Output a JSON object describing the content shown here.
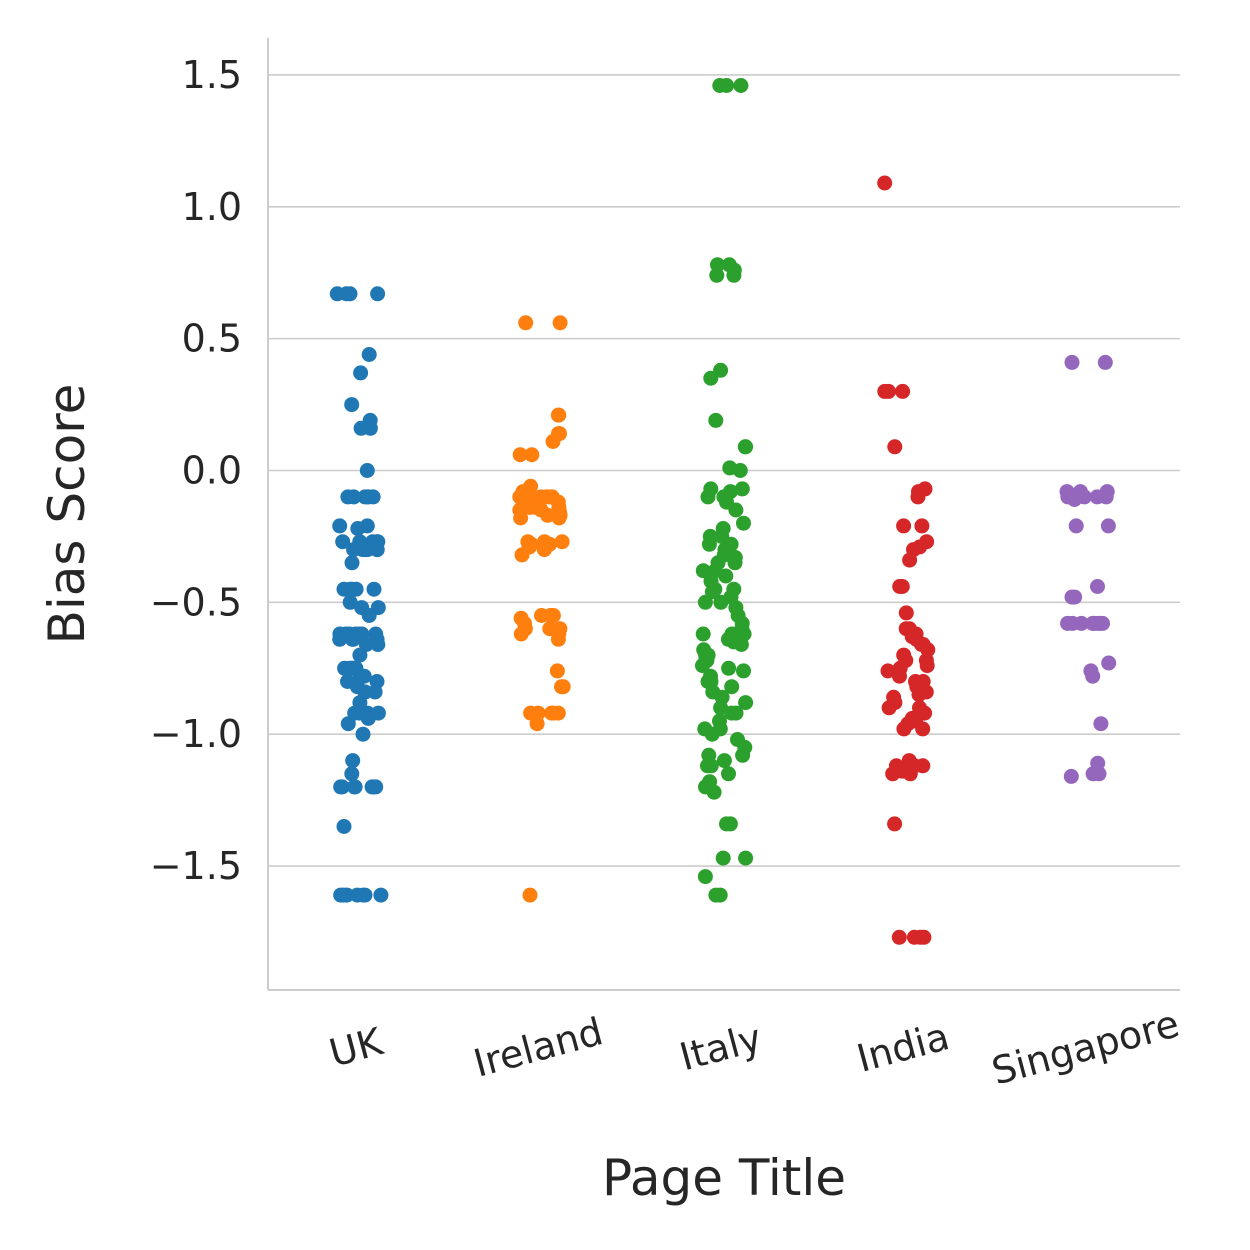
{
  "chart_data": {
    "type": "scatter",
    "subtype": "strip",
    "title": "",
    "xlabel": "Page Title",
    "ylabel": "Bias Score",
    "ylim": [
      -1.97,
      1.64
    ],
    "yticks": [
      1.5,
      1.0,
      0.5,
      0.0,
      -0.5,
      -1.0,
      -1.5
    ],
    "ytick_labels": [
      "1.5",
      "1.0",
      "0.5",
      "0.0",
      "−0.5",
      "−1.0",
      "−1.5"
    ],
    "grid": "horizontal",
    "categories": [
      "UK",
      "Ireland",
      "Italy",
      "India",
      "Singapore"
    ],
    "colors": [
      "#1f77b4",
      "#ff7f0e",
      "#2ca02c",
      "#d62728",
      "#9467bd"
    ],
    "series": [
      {
        "values": [
          0.67,
          0.67,
          0.67,
          0.67,
          0.44,
          0.37,
          0.25,
          0.19,
          0.16,
          0.16,
          0.0,
          -0.1,
          -0.1,
          -0.1,
          -0.1,
          -0.1,
          -0.1,
          -0.21,
          -0.21,
          -0.22,
          -0.27,
          -0.27,
          -0.27,
          -0.27,
          -0.27,
          -0.3,
          -0.3,
          -0.3,
          -0.3,
          -0.3,
          -0.3,
          -0.35,
          -0.45,
          -0.45,
          -0.45,
          -0.45,
          -0.45,
          -0.5,
          -0.52,
          -0.52,
          -0.55,
          -0.62,
          -0.62,
          -0.62,
          -0.62,
          -0.62,
          -0.62,
          -0.62,
          -0.64,
          -0.64,
          -0.64,
          -0.64,
          -0.66,
          -0.66,
          -0.7,
          -0.75,
          -0.75,
          -0.75,
          -0.75,
          -0.75,
          -0.75,
          -0.78,
          -0.78,
          -0.8,
          -0.8,
          -0.82,
          -0.84,
          -0.84,
          -0.84,
          -0.88,
          -0.92,
          -0.92,
          -0.92,
          -0.92,
          -0.94,
          -0.96,
          -1.0,
          -1.1,
          -1.15,
          -1.2,
          -1.2,
          -1.2,
          -1.2,
          -1.2,
          -1.2,
          -1.2,
          -1.35,
          -1.61,
          -1.61,
          -1.61,
          -1.61,
          -1.61,
          -1.61,
          -1.61
        ]
      },
      {
        "values": [
          0.56,
          0.56,
          0.21,
          0.21,
          0.14,
          0.14,
          0.11,
          0.06,
          0.06,
          -0.06,
          -0.08,
          -0.1,
          -0.1,
          -0.1,
          -0.1,
          -0.1,
          -0.1,
          -0.12,
          -0.12,
          -0.14,
          -0.14,
          -0.14,
          -0.14,
          -0.15,
          -0.15,
          -0.16,
          -0.17,
          -0.17,
          -0.18,
          -0.18,
          -0.27,
          -0.27,
          -0.27,
          -0.28,
          -0.28,
          -0.29,
          -0.29,
          -0.3,
          -0.32,
          -0.55,
          -0.55,
          -0.55,
          -0.55,
          -0.56,
          -0.58,
          -0.6,
          -0.6,
          -0.6,
          -0.62,
          -0.62,
          -0.64,
          -0.76,
          -0.82,
          -0.82,
          -0.92,
          -0.92,
          -0.92,
          -0.92,
          -0.92,
          -0.96,
          -1.61
        ]
      },
      {
        "values": [
          1.46,
          1.46,
          1.46,
          0.78,
          0.78,
          0.76,
          0.74,
          0.74,
          0.38,
          0.35,
          0.19,
          0.09,
          0.09,
          0.01,
          0.0,
          -0.07,
          -0.07,
          -0.08,
          -0.1,
          -0.1,
          -0.12,
          -0.15,
          -0.2,
          -0.22,
          -0.25,
          -0.25,
          -0.28,
          -0.28,
          -0.3,
          -0.3,
          -0.32,
          -0.33,
          -0.35,
          -0.35,
          -0.38,
          -0.38,
          -0.4,
          -0.42,
          -0.45,
          -0.45,
          -0.46,
          -0.48,
          -0.5,
          -0.5,
          -0.52,
          -0.55,
          -0.58,
          -0.6,
          -0.62,
          -0.62,
          -0.62,
          -0.63,
          -0.64,
          -0.65,
          -0.66,
          -0.68,
          -0.7,
          -0.7,
          -0.72,
          -0.72,
          -0.74,
          -0.75,
          -0.76,
          -0.78,
          -0.8,
          -0.8,
          -0.82,
          -0.84,
          -0.86,
          -0.88,
          -0.9,
          -0.92,
          -0.92,
          -0.95,
          -0.98,
          -0.98,
          -1.0,
          -1.02,
          -1.05,
          -1.08,
          -1.08,
          -1.1,
          -1.12,
          -1.12,
          -1.15,
          -1.18,
          -1.2,
          -1.22,
          -1.34,
          -1.34,
          -1.47,
          -1.47,
          -1.54,
          -1.61,
          -1.61
        ]
      },
      {
        "values": [
          1.09,
          0.3,
          0.3,
          0.3,
          0.09,
          -0.07,
          -0.08,
          -0.1,
          -0.21,
          -0.21,
          -0.27,
          -0.29,
          -0.3,
          -0.34,
          -0.44,
          -0.44,
          -0.54,
          -0.6,
          -0.6,
          -0.62,
          -0.62,
          -0.63,
          -0.64,
          -0.66,
          -0.66,
          -0.68,
          -0.7,
          -0.72,
          -0.72,
          -0.74,
          -0.75,
          -0.76,
          -0.78,
          -0.8,
          -0.8,
          -0.82,
          -0.84,
          -0.85,
          -0.86,
          -0.88,
          -0.9,
          -0.9,
          -0.92,
          -0.92,
          -0.94,
          -0.95,
          -0.96,
          -0.98,
          -0.98,
          -1.1,
          -1.12,
          -1.12,
          -1.12,
          -1.14,
          -1.14,
          -1.15,
          -1.15,
          -1.34,
          -1.77,
          -1.77,
          -1.77,
          -1.77
        ]
      },
      {
        "values": [
          0.41,
          0.41,
          -0.08,
          -0.08,
          -0.08,
          -0.1,
          -0.1,
          -0.1,
          -0.1,
          -0.1,
          -0.11,
          -0.21,
          -0.21,
          -0.44,
          -0.48,
          -0.48,
          -0.58,
          -0.58,
          -0.58,
          -0.58,
          -0.58,
          -0.58,
          -0.58,
          -0.58,
          -0.73,
          -0.76,
          -0.78,
          -0.96,
          -1.11,
          -1.15,
          -1.15,
          -1.16
        ]
      }
    ]
  }
}
